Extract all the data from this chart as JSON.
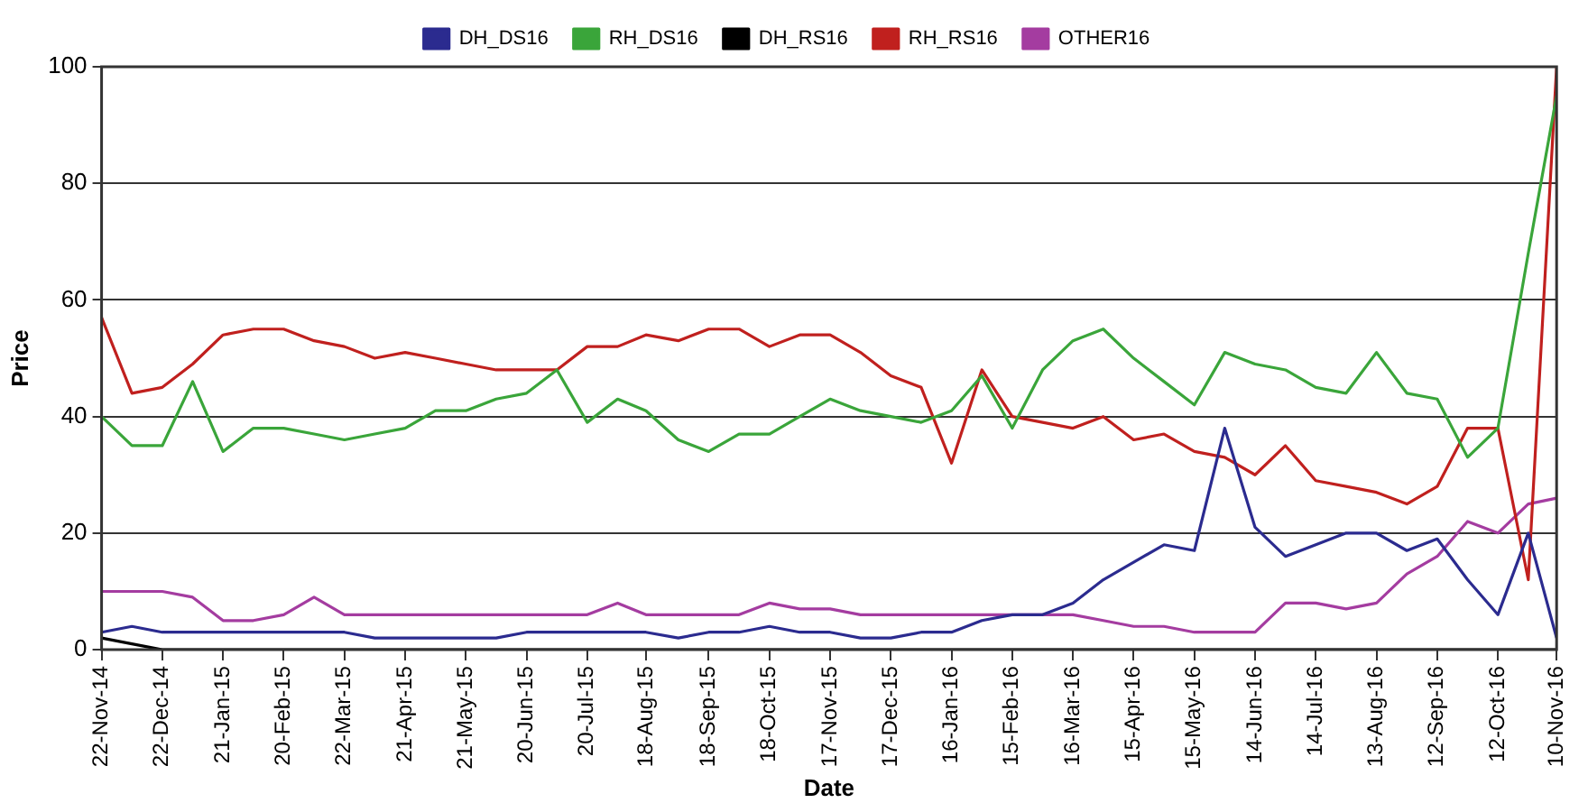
{
  "chart_data": {
    "type": "line",
    "xlabel": "Date",
    "ylabel": "Price",
    "grid": "y",
    "legend": "top",
    "xlim": [
      "2014-11-22",
      "2016-11-10"
    ],
    "xticks": [
      {
        "value": "2014-11-22",
        "label": "22-Nov-14"
      },
      {
        "value": "2014-12-22",
        "label": "22-Dec-14"
      },
      {
        "value": "2015-01-21",
        "label": "21-Jan-15"
      },
      {
        "value": "2015-02-20",
        "label": "20-Feb-15"
      },
      {
        "value": "2015-03-22",
        "label": "22-Mar-15"
      },
      {
        "value": "2015-04-21",
        "label": "21-Apr-15"
      },
      {
        "value": "2015-05-21",
        "label": "21-May-15"
      },
      {
        "value": "2015-06-20",
        "label": "20-Jun-15"
      },
      {
        "value": "2015-07-20",
        "label": "20-Jul-15"
      },
      {
        "value": "2015-08-18",
        "label": "18-Aug-15"
      },
      {
        "value": "2015-09-18",
        "label": "18-Sep-15"
      },
      {
        "value": "2015-10-18",
        "label": "18-Oct-15"
      },
      {
        "value": "2015-11-17",
        "label": "17-Nov-15"
      },
      {
        "value": "2015-12-17",
        "label": "17-Dec-15"
      },
      {
        "value": "2016-01-16",
        "label": "16-Jan-16"
      },
      {
        "value": "2016-02-15",
        "label": "15-Feb-16"
      },
      {
        "value": "2016-03-16",
        "label": "16-Mar-16"
      },
      {
        "value": "2016-04-15",
        "label": "15-Apr-16"
      },
      {
        "value": "2016-05-15",
        "label": "15-May-16"
      },
      {
        "value": "2016-06-14",
        "label": "14-Jun-16"
      },
      {
        "value": "2016-07-14",
        "label": "14-Jul-16"
      },
      {
        "value": "2016-08-13",
        "label": "13-Aug-16"
      },
      {
        "value": "2016-09-12",
        "label": "12-Sep-16"
      },
      {
        "value": "2016-10-12",
        "label": "12-Oct-16"
      },
      {
        "value": "2016-11-10",
        "label": "10-Nov-16"
      }
    ],
    "ylim": [
      0,
      100
    ],
    "yticks": [
      0,
      20,
      40,
      60,
      80,
      100
    ],
    "x": [
      "2014-11-22",
      "2014-12-07",
      "2014-12-22",
      "2015-01-06",
      "2015-01-21",
      "2015-02-05",
      "2015-02-20",
      "2015-03-07",
      "2015-03-22",
      "2015-04-06",
      "2015-04-21",
      "2015-05-06",
      "2015-05-21",
      "2015-06-05",
      "2015-06-20",
      "2015-07-05",
      "2015-07-20",
      "2015-08-04",
      "2015-08-18",
      "2015-09-03",
      "2015-09-18",
      "2015-10-03",
      "2015-10-18",
      "2015-11-02",
      "2015-11-17",
      "2015-12-02",
      "2015-12-17",
      "2016-01-01",
      "2016-01-16",
      "2016-01-31",
      "2016-02-15",
      "2016-03-01",
      "2016-03-16",
      "2016-03-31",
      "2016-04-15",
      "2016-04-30",
      "2016-05-15",
      "2016-05-30",
      "2016-06-14",
      "2016-06-29",
      "2016-07-14",
      "2016-07-29",
      "2016-08-13",
      "2016-08-28",
      "2016-09-12",
      "2016-09-27",
      "2016-10-12",
      "2016-10-27",
      "2016-11-10"
    ],
    "series": [
      {
        "name": "DH_DS16",
        "color": "#2b2b8f",
        "values": [
          3,
          4,
          3,
          3,
          3,
          3,
          3,
          3,
          3,
          2,
          2,
          2,
          2,
          2,
          3,
          3,
          3,
          3,
          3,
          2,
          3,
          3,
          4,
          3,
          3,
          2,
          2,
          3,
          3,
          5,
          6,
          6,
          8,
          12,
          15,
          18,
          17,
          38,
          21,
          16,
          18,
          20,
          20,
          17,
          19,
          12,
          6,
          20,
          2
        ]
      },
      {
        "name": "RH_DS16",
        "color": "#3aa53a",
        "values": [
          40,
          35,
          35,
          46,
          34,
          38,
          38,
          37,
          36,
          37,
          38,
          41,
          41,
          43,
          44,
          48,
          39,
          43,
          41,
          36,
          34,
          37,
          37,
          40,
          43,
          41,
          40,
          39,
          41,
          47,
          38,
          48,
          53,
          55,
          50,
          46,
          42,
          51,
          49,
          48,
          45,
          44,
          51,
          44,
          43,
          33,
          38,
          68,
          95
        ]
      },
      {
        "name": "DH_RS16",
        "color": "#000000",
        "values": [
          2,
          1,
          0,
          0,
          0,
          0,
          0,
          0,
          0,
          0,
          0,
          0,
          0,
          0,
          0,
          0,
          0,
          0,
          0,
          0,
          0,
          0,
          0,
          0,
          0,
          0,
          0,
          0,
          0,
          0,
          0,
          0,
          0,
          0,
          0,
          0,
          0,
          0,
          0,
          0,
          0,
          0,
          0,
          0,
          0,
          0,
          0,
          0,
          0
        ]
      },
      {
        "name": "RH_RS16",
        "color": "#c0201e",
        "values": [
          57,
          44,
          45,
          49,
          54,
          55,
          55,
          53,
          52,
          50,
          51,
          50,
          49,
          48,
          48,
          48,
          52,
          52,
          54,
          53,
          55,
          55,
          52,
          54,
          54,
          51,
          47,
          45,
          32,
          48,
          40,
          39,
          38,
          40,
          36,
          37,
          34,
          33,
          30,
          35,
          29,
          28,
          27,
          25,
          28,
          38,
          38,
          12,
          100
        ]
      },
      {
        "name": "OTHER16",
        "color": "#a43ca0",
        "values": [
          10,
          10,
          10,
          9,
          5,
          5,
          6,
          9,
          6,
          6,
          6,
          6,
          6,
          6,
          6,
          6,
          6,
          8,
          6,
          6,
          6,
          6,
          8,
          7,
          7,
          6,
          6,
          6,
          6,
          6,
          6,
          6,
          6,
          5,
          4,
          4,
          3,
          3,
          3,
          8,
          8,
          7,
          8,
          13,
          16,
          22,
          20,
          25,
          26
        ]
      }
    ]
  }
}
